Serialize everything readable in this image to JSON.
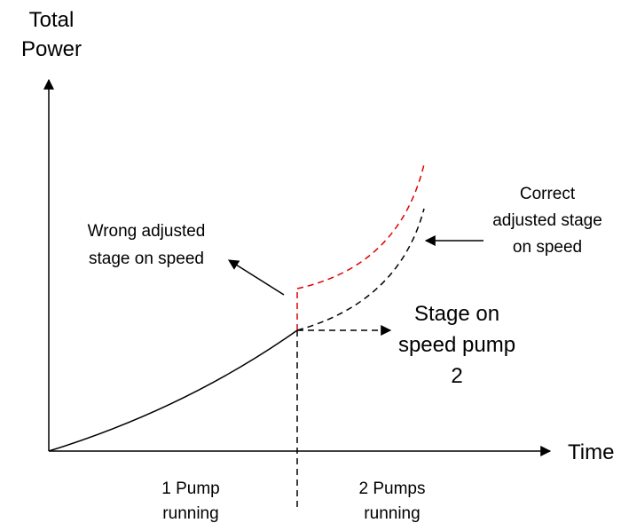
{
  "axes": {
    "y_label": [
      "Total",
      "Power"
    ],
    "x_label": "Time"
  },
  "annotations": {
    "wrong": [
      "Wrong adjusted",
      "stage on speed"
    ],
    "correct": [
      "Correct",
      "adjusted stage",
      "on speed"
    ],
    "stage": [
      "Stage on",
      "speed pump",
      "2"
    ]
  },
  "regions": {
    "one": [
      "1 Pump",
      "running"
    ],
    "two": [
      "2 Pumps",
      "running"
    ]
  }
}
